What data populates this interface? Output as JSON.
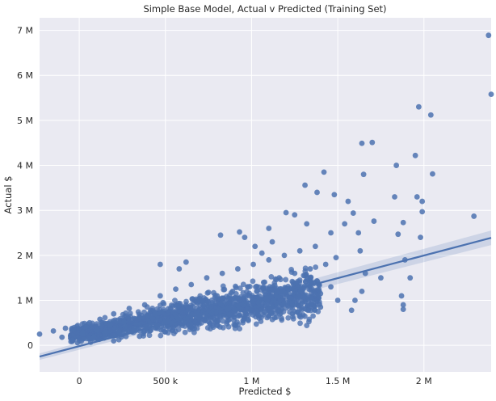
{
  "chart_data": {
    "type": "scatter",
    "title": "Simple Base Model, Actual v Predicted (Training Set)",
    "xlabel": "Predicted $",
    "ylabel": "Actual $",
    "xlim": [
      -230000,
      2390000
    ],
    "ylim": [
      -590000,
      7280000
    ],
    "x_ticks": [
      {
        "value": 0,
        "label": "0"
      },
      {
        "value": 500000,
        "label": "500 k"
      },
      {
        "value": 1000000,
        "label": "1 M"
      },
      {
        "value": 1500000,
        "label": "1.5 M"
      },
      {
        "value": 2000000,
        "label": "2 M"
      }
    ],
    "y_ticks": [
      {
        "value": 0,
        "label": "0"
      },
      {
        "value": 1000000,
        "label": "1 M"
      },
      {
        "value": 2000000,
        "label": "2 M"
      },
      {
        "value": 3000000,
        "label": "3 M"
      },
      {
        "value": 4000000,
        "label": "4 M"
      },
      {
        "value": 5000000,
        "label": "5 M"
      },
      {
        "value": 6000000,
        "label": "6 M"
      },
      {
        "value": 7000000,
        "label": "7 M"
      }
    ],
    "grid": true,
    "regression_line": {
      "x": [
        -230000,
        2390000
      ],
      "y": [
        -250000,
        2390000
      ]
    },
    "points": [
      [
        2375000,
        6890000
      ],
      [
        2390000,
        5580000
      ],
      [
        1970000,
        5300000
      ],
      [
        2040000,
        5120000
      ],
      [
        1640000,
        4490000
      ],
      [
        1700000,
        4510000
      ],
      [
        1950000,
        4220000
      ],
      [
        1840000,
        4000000
      ],
      [
        2050000,
        3810000
      ],
      [
        1650000,
        3800000
      ],
      [
        1420000,
        3850000
      ],
      [
        1830000,
        3300000
      ],
      [
        1960000,
        3300000
      ],
      [
        1990000,
        3200000
      ],
      [
        1990000,
        2970000
      ],
      [
        2290000,
        2870000
      ],
      [
        1880000,
        2730000
      ],
      [
        1710000,
        2760000
      ],
      [
        1850000,
        2470000
      ],
      [
        1980000,
        2400000
      ],
      [
        1480000,
        3350000
      ],
      [
        1310000,
        3560000
      ],
      [
        1380000,
        3400000
      ],
      [
        1560000,
        3200000
      ],
      [
        1590000,
        2940000
      ],
      [
        1250000,
        2900000
      ],
      [
        1100000,
        2600000
      ],
      [
        1200000,
        2950000
      ],
      [
        1460000,
        2500000
      ],
      [
        1540000,
        2700000
      ],
      [
        1630000,
        2100000
      ],
      [
        1620000,
        2500000
      ],
      [
        1920000,
        1500000
      ],
      [
        1890000,
        1900000
      ],
      [
        1870000,
        1100000
      ],
      [
        1880000,
        900000
      ],
      [
        1880000,
        800000
      ],
      [
        1640000,
        1200000
      ],
      [
        1600000,
        1000000
      ],
      [
        1580000,
        780000
      ],
      [
        1750000,
        1500000
      ],
      [
        1660000,
        1600000
      ],
      [
        930000,
        2520000
      ],
      [
        960000,
        2400000
      ],
      [
        470000,
        1800000
      ],
      [
        580000,
        1700000
      ],
      [
        620000,
        1850000
      ],
      [
        820000,
        2450000
      ],
      [
        1020000,
        2200000
      ],
      [
        1120000,
        2300000
      ],
      [
        1320000,
        2700000
      ],
      [
        1060000,
        2050000
      ],
      [
        -230000,
        250000
      ],
      [
        -150000,
        320000
      ],
      [
        -100000,
        180000
      ],
      [
        -80000,
        380000
      ],
      [
        -40000,
        110000
      ],
      [
        -10000,
        60000
      ],
      [
        20000,
        260000
      ],
      [
        40000,
        420000
      ],
      [
        60000,
        500000
      ],
      [
        80000,
        150000
      ],
      [
        100000,
        340000
      ],
      [
        120000,
        580000
      ],
      [
        150000,
        240000
      ],
      [
        180000,
        460000
      ],
      [
        200000,
        700000
      ],
      [
        230000,
        300000
      ],
      [
        260000,
        520000
      ],
      [
        290000,
        820000
      ],
      [
        320000,
        380000
      ],
      [
        350000,
        620000
      ],
      [
        380000,
        900000
      ],
      [
        410000,
        450000
      ],
      [
        440000,
        700000
      ],
      [
        470000,
        1100000
      ],
      [
        500000,
        550000
      ],
      [
        530000,
        820000
      ],
      [
        560000,
        1250000
      ],
      [
        590000,
        600000
      ],
      [
        620000,
        900000
      ],
      [
        650000,
        1350000
      ],
      [
        680000,
        650000
      ],
      [
        710000,
        1000000
      ],
      [
        740000,
        1500000
      ],
      [
        770000,
        720000
      ],
      [
        800000,
        1100000
      ],
      [
        830000,
        1600000
      ],
      [
        860000,
        800000
      ],
      [
        890000,
        1200000
      ],
      [
        920000,
        1700000
      ],
      [
        950000,
        900000
      ],
      [
        980000,
        1300000
      ],
      [
        1010000,
        1800000
      ],
      [
        1040000,
        950000
      ],
      [
        1070000,
        1400000
      ],
      [
        1100000,
        1900000
      ],
      [
        1130000,
        1000000
      ],
      [
        1160000,
        1500000
      ],
      [
        1190000,
        2000000
      ],
      [
        1220000,
        1050000
      ],
      [
        1250000,
        1600000
      ],
      [
        1280000,
        2100000
      ],
      [
        1310000,
        1100000
      ],
      [
        1340000,
        1700000
      ],
      [
        1370000,
        2200000
      ],
      [
        1400000,
        1150000
      ],
      [
        1430000,
        1800000
      ],
      [
        1460000,
        1300000
      ],
      [
        1490000,
        1950000
      ],
      [
        200000,
        100000
      ],
      [
        350000,
        200000
      ],
      [
        500000,
        300000
      ],
      [
        650000,
        400000
      ],
      [
        800000,
        450000
      ],
      [
        950000,
        550000
      ],
      [
        1100000,
        650000
      ],
      [
        1250000,
        750000
      ],
      [
        1400000,
        850000
      ],
      [
        1500000,
        1000000
      ]
    ],
    "dense_region": {
      "x": [
        -50000,
        1400000
      ],
      "y_lower": [
        0,
        400000
      ],
      "y_upper": [
        450000,
        1950000
      ]
    }
  },
  "colors": {
    "points": "#4c72b0",
    "line": "#4c72b0",
    "plot_bg": "#eaeaf2",
    "grid": "#ffffff"
  }
}
